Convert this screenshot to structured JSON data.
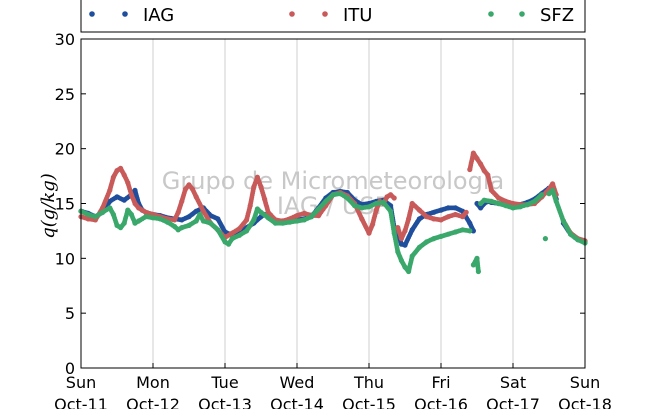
{
  "chart_data": {
    "type": "scatter",
    "ylabel": "q(g/kg)",
    "ylim": [
      0,
      30
    ],
    "yticks": [
      0,
      5,
      10,
      15,
      20,
      25,
      30
    ],
    "xlim": [
      "2015-10-11",
      "2015-10-18"
    ],
    "xticks": [
      {
        "day": "Sun",
        "date": "Oct-11"
      },
      {
        "day": "Mon",
        "date": "Oct-12"
      },
      {
        "day": "Tue",
        "date": "Oct-13"
      },
      {
        "day": "Wed",
        "date": "Oct-14"
      },
      {
        "day": "Thu",
        "date": "Oct-15"
      },
      {
        "day": "Fri",
        "date": "Oct-16"
      },
      {
        "day": "Sat",
        "date": "Oct-17"
      },
      {
        "day": "Sun",
        "date": "Oct-18"
      }
    ],
    "grid": "vertical",
    "legend_position": "top",
    "watermark": [
      "Grupo de Micrometeorologia",
      "IAG / USP"
    ],
    "series": [
      {
        "name": "IAG",
        "color": "#1f4e9c",
        "points": [
          [
            0.0,
            14.3
          ],
          [
            0.1,
            14.1
          ],
          [
            0.2,
            13.8
          ],
          [
            0.3,
            14.2
          ],
          [
            0.4,
            15.2
          ],
          [
            0.5,
            15.6
          ],
          [
            0.6,
            15.3
          ],
          [
            0.7,
            15.8
          ],
          [
            0.75,
            16.2
          ],
          [
            0.8,
            15.0
          ],
          [
            0.85,
            14.4
          ],
          [
            0.9,
            14.2
          ],
          [
            1.0,
            14.0
          ],
          [
            1.1,
            13.9
          ],
          [
            1.2,
            13.7
          ],
          [
            1.3,
            13.6
          ],
          [
            1.4,
            13.5
          ],
          [
            1.5,
            13.8
          ],
          [
            1.6,
            14.3
          ],
          [
            1.7,
            14.6
          ],
          [
            1.8,
            13.9
          ],
          [
            1.9,
            13.6
          ],
          [
            2.0,
            12.4
          ],
          [
            2.1,
            12.1
          ],
          [
            2.2,
            12.3
          ],
          [
            2.3,
            12.8
          ],
          [
            2.4,
            13.2
          ],
          [
            2.5,
            13.8
          ],
          [
            2.55,
            14.0
          ],
          [
            2.6,
            13.8
          ],
          [
            2.7,
            13.4
          ],
          [
            2.8,
            13.4
          ],
          [
            2.9,
            13.5
          ],
          [
            3.0,
            13.5
          ],
          [
            3.1,
            13.6
          ],
          [
            3.2,
            13.8
          ],
          [
            3.3,
            14.6
          ],
          [
            3.4,
            15.5
          ],
          [
            3.5,
            16.0
          ],
          [
            3.6,
            16.1
          ],
          [
            3.7,
            16.0
          ],
          [
            3.8,
            15.3
          ],
          [
            3.9,
            14.9
          ],
          [
            4.0,
            15.0
          ],
          [
            4.1,
            15.2
          ],
          [
            4.2,
            15.3
          ],
          [
            4.3,
            14.8
          ],
          [
            4.35,
            12.8
          ],
          [
            4.4,
            12.2
          ],
          [
            4.45,
            11.3
          ],
          [
            4.5,
            11.2
          ],
          [
            4.6,
            12.6
          ],
          [
            4.7,
            13.6
          ],
          [
            4.8,
            14.0
          ],
          [
            4.9,
            14.2
          ],
          [
            5.0,
            14.4
          ],
          [
            5.1,
            14.6
          ],
          [
            5.2,
            14.6
          ],
          [
            5.3,
            14.3
          ],
          [
            5.4,
            13.2
          ],
          [
            5.45,
            12.5
          ],
          [
            5.5,
            15.0
          ],
          [
            5.55,
            14.6
          ],
          [
            5.6,
            15.0
          ],
          [
            5.65,
            15.2
          ],
          [
            5.7,
            15.1
          ],
          [
            5.8,
            15.0
          ],
          [
            5.9,
            14.9
          ],
          [
            6.0,
            14.8
          ],
          [
            6.1,
            14.9
          ],
          [
            6.2,
            15.1
          ],
          [
            6.3,
            15.4
          ],
          [
            6.4,
            15.9
          ],
          [
            6.5,
            16.4
          ],
          [
            6.55,
            16.6
          ],
          [
            6.6,
            15.4
          ],
          [
            6.7,
            13.2
          ],
          [
            6.8,
            12.2
          ],
          [
            6.9,
            11.7
          ],
          [
            7.0,
            11.5
          ]
        ]
      },
      {
        "name": "ITU",
        "color": "#c85a5a",
        "points": [
          [
            0.0,
            13.8
          ],
          [
            0.1,
            13.6
          ],
          [
            0.2,
            13.5
          ],
          [
            0.3,
            14.6
          ],
          [
            0.4,
            16.2
          ],
          [
            0.45,
            17.4
          ],
          [
            0.5,
            18.0
          ],
          [
            0.55,
            18.2
          ],
          [
            0.6,
            17.6
          ],
          [
            0.65,
            16.9
          ],
          [
            0.7,
            15.8
          ],
          [
            0.75,
            15.0
          ],
          [
            0.8,
            14.6
          ],
          [
            0.9,
            14.2
          ],
          [
            1.0,
            14.0
          ],
          [
            1.1,
            13.8
          ],
          [
            1.2,
            13.6
          ],
          [
            1.3,
            13.5
          ],
          [
            1.35,
            14.2
          ],
          [
            1.4,
            15.2
          ],
          [
            1.45,
            16.3
          ],
          [
            1.5,
            16.7
          ],
          [
            1.55,
            16.3
          ],
          [
            1.6,
            15.6
          ],
          [
            1.7,
            14.3
          ],
          [
            1.8,
            13.2
          ],
          [
            1.9,
            12.6
          ],
          [
            2.0,
            11.9
          ],
          [
            2.1,
            12.3
          ],
          [
            2.2,
            12.7
          ],
          [
            2.3,
            13.5
          ],
          [
            2.35,
            14.8
          ],
          [
            2.4,
            16.5
          ],
          [
            2.45,
            17.4
          ],
          [
            2.5,
            16.5
          ],
          [
            2.55,
            15.4
          ],
          [
            2.6,
            14.2
          ],
          [
            2.7,
            13.5
          ],
          [
            2.8,
            13.4
          ],
          [
            2.9,
            13.6
          ],
          [
            3.0,
            13.9
          ],
          [
            3.1,
            14.1
          ],
          [
            3.2,
            13.9
          ],
          [
            3.3,
            13.9
          ],
          [
            3.4,
            14.8
          ],
          [
            3.5,
            15.8
          ],
          [
            3.6,
            16.0
          ],
          [
            3.7,
            15.7
          ],
          [
            3.8,
            15.0
          ],
          [
            3.9,
            13.6
          ],
          [
            4.0,
            12.3
          ],
          [
            4.05,
            13.1
          ],
          [
            4.1,
            14.4
          ],
          [
            4.15,
            15.2
          ],
          [
            4.2,
            15.0
          ],
          [
            4.25,
            15.6
          ],
          [
            4.3,
            15.8
          ],
          [
            4.35,
            15.5
          ],
          [
            4.4,
            12.8
          ],
          [
            4.45,
            11.8
          ],
          [
            4.5,
            12.5
          ],
          [
            4.55,
            13.6
          ],
          [
            4.6,
            15.0
          ],
          [
            4.7,
            14.4
          ],
          [
            4.8,
            13.8
          ],
          [
            4.9,
            13.6
          ],
          [
            5.0,
            13.5
          ],
          [
            5.1,
            13.8
          ],
          [
            5.2,
            14.0
          ],
          [
            5.3,
            13.8
          ],
          [
            5.35,
            14.2
          ],
          [
            5.4,
            18.1
          ],
          [
            5.45,
            19.6
          ],
          [
            5.5,
            19.1
          ],
          [
            5.55,
            18.6
          ],
          [
            5.6,
            18.0
          ],
          [
            5.65,
            17.6
          ],
          [
            5.7,
            16.2
          ],
          [
            5.8,
            15.5
          ],
          [
            5.9,
            15.2
          ],
          [
            6.0,
            15.0
          ],
          [
            6.1,
            14.9
          ],
          [
            6.2,
            14.9
          ],
          [
            6.3,
            15.0
          ],
          [
            6.4,
            15.6
          ],
          [
            6.5,
            16.3
          ],
          [
            6.55,
            16.8
          ],
          [
            6.6,
            15.8
          ],
          [
            6.7,
            13.4
          ],
          [
            6.8,
            12.3
          ],
          [
            6.9,
            11.8
          ],
          [
            7.0,
            11.6
          ]
        ]
      },
      {
        "name": "SFZ",
        "color": "#3aa86a",
        "points": [
          [
            0.0,
            14.3
          ],
          [
            0.1,
            14.0
          ],
          [
            0.2,
            13.8
          ],
          [
            0.3,
            14.2
          ],
          [
            0.4,
            14.6
          ],
          [
            0.45,
            14.0
          ],
          [
            0.5,
            13.0
          ],
          [
            0.55,
            12.8
          ],
          [
            0.6,
            13.2
          ],
          [
            0.65,
            14.4
          ],
          [
            0.7,
            14.0
          ],
          [
            0.75,
            13.2
          ],
          [
            0.8,
            13.4
          ],
          [
            0.9,
            13.8
          ],
          [
            1.0,
            13.7
          ],
          [
            1.1,
            13.6
          ],
          [
            1.2,
            13.3
          ],
          [
            1.3,
            12.9
          ],
          [
            1.35,
            12.6
          ],
          [
            1.4,
            12.8
          ],
          [
            1.5,
            13.0
          ],
          [
            1.6,
            13.4
          ],
          [
            1.65,
            14.0
          ],
          [
            1.7,
            13.4
          ],
          [
            1.8,
            13.2
          ],
          [
            1.9,
            12.6
          ],
          [
            2.0,
            11.5
          ],
          [
            2.05,
            11.3
          ],
          [
            2.1,
            11.8
          ],
          [
            2.2,
            12.1
          ],
          [
            2.3,
            12.5
          ],
          [
            2.4,
            13.5
          ],
          [
            2.45,
            14.5
          ],
          [
            2.5,
            14.2
          ],
          [
            2.6,
            13.7
          ],
          [
            2.7,
            13.2
          ],
          [
            2.8,
            13.2
          ],
          [
            2.9,
            13.3
          ],
          [
            3.0,
            13.4
          ],
          [
            3.1,
            13.5
          ],
          [
            3.2,
            13.8
          ],
          [
            3.3,
            14.5
          ],
          [
            3.4,
            15.2
          ],
          [
            3.5,
            15.8
          ],
          [
            3.6,
            15.9
          ],
          [
            3.7,
            15.5
          ],
          [
            3.8,
            14.8
          ],
          [
            3.9,
            14.6
          ],
          [
            4.0,
            14.7
          ],
          [
            4.1,
            15.0
          ],
          [
            4.2,
            15.1
          ],
          [
            4.3,
            14.3
          ],
          [
            4.35,
            12.3
          ],
          [
            4.4,
            10.6
          ],
          [
            4.45,
            9.8
          ],
          [
            4.5,
            9.2
          ],
          [
            4.55,
            8.8
          ],
          [
            4.6,
            10.2
          ],
          [
            4.7,
            11.0
          ],
          [
            4.8,
            11.5
          ],
          [
            4.9,
            11.8
          ],
          [
            5.0,
            12.0
          ],
          [
            5.1,
            12.2
          ],
          [
            5.2,
            12.4
          ],
          [
            5.3,
            12.6
          ],
          [
            5.4,
            12.5
          ],
          [
            5.45,
            9.4
          ],
          [
            5.5,
            10.0
          ],
          [
            5.52,
            8.8
          ],
          [
            5.55,
            15.0
          ],
          [
            5.6,
            15.3
          ],
          [
            5.7,
            15.2
          ],
          [
            5.8,
            15.0
          ],
          [
            5.9,
            14.8
          ],
          [
            6.0,
            14.6
          ],
          [
            6.1,
            14.7
          ],
          [
            6.2,
            14.9
          ],
          [
            6.3,
            15.2
          ],
          [
            6.4,
            15.8
          ],
          [
            6.45,
            11.8
          ],
          [
            6.5,
            15.9
          ],
          [
            6.55,
            16.2
          ],
          [
            6.6,
            15.2
          ],
          [
            6.7,
            13.4
          ],
          [
            6.8,
            12.2
          ],
          [
            6.9,
            11.7
          ],
          [
            7.0,
            11.4
          ]
        ]
      }
    ]
  }
}
